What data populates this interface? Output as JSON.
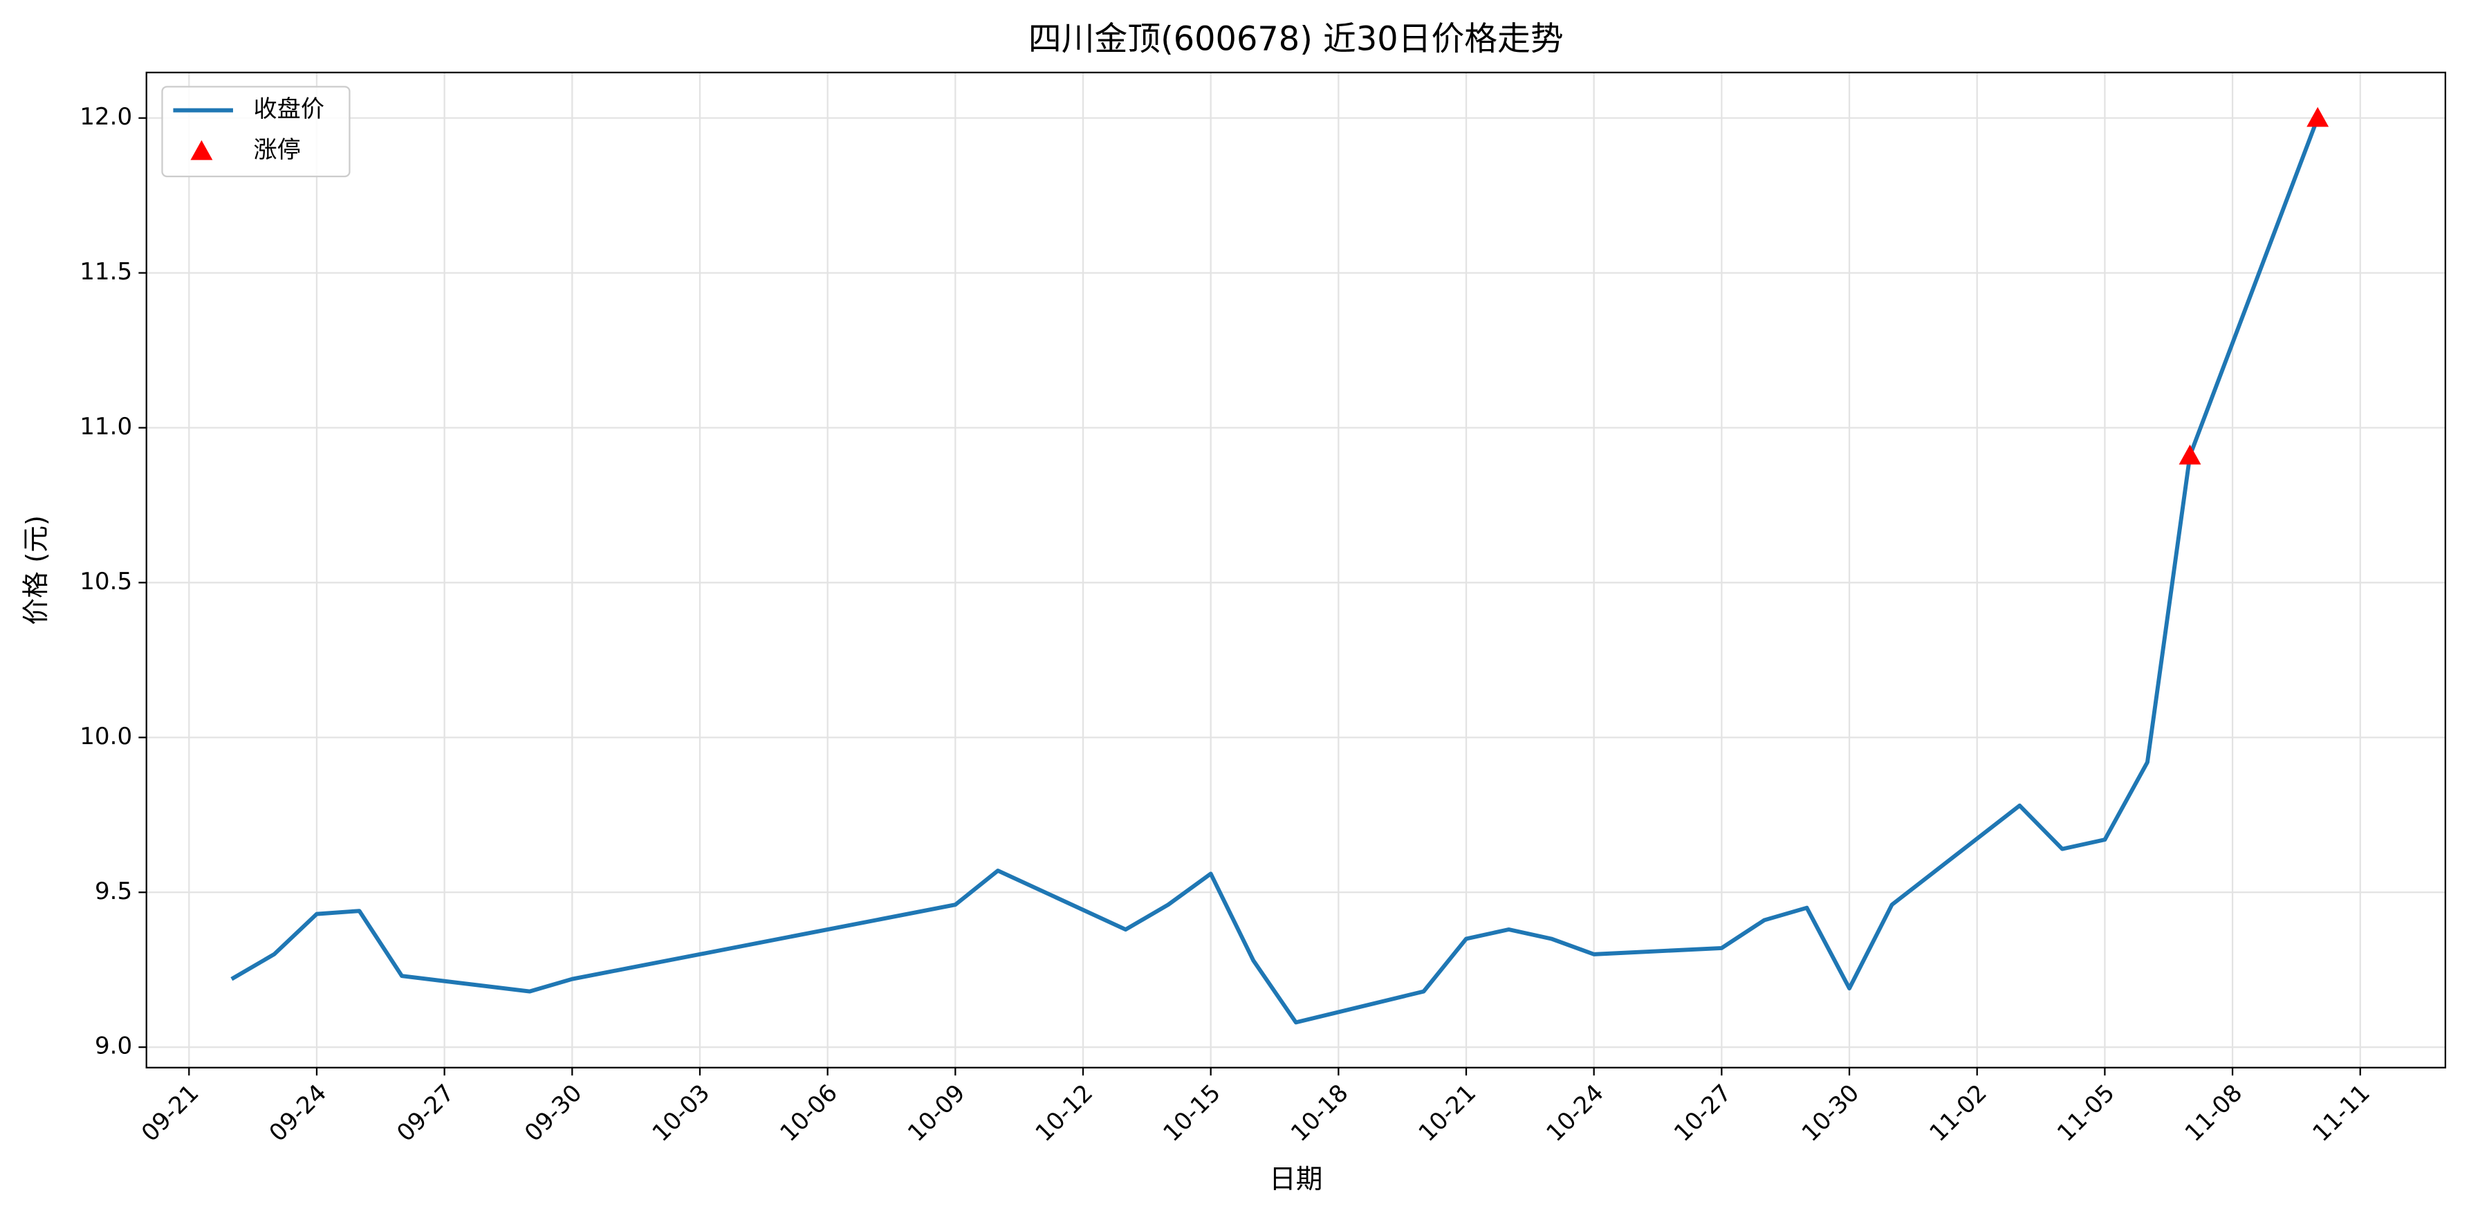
{
  "chart_data": {
    "type": "line",
    "title": "四川金顶(600678) 近30日价格走势",
    "x_label": "日期",
    "y_label": "价格 (元)",
    "x": [
      "09-22",
      "09-23",
      "09-24",
      "09-25",
      "09-26",
      "09-29",
      "09-30",
      "10-09",
      "10-10",
      "10-13",
      "10-14",
      "10-15",
      "10-16",
      "10-17",
      "10-20",
      "10-21",
      "10-22",
      "10-23",
      "10-24",
      "10-27",
      "10-28",
      "10-29",
      "10-30",
      "10-31",
      "11-03",
      "11-04",
      "11-05",
      "11-06",
      "11-07",
      "11-10"
    ],
    "series": [
      {
        "name": "收盘价",
        "type": "line",
        "color": "#1f77b4",
        "values": [
          9.22,
          9.3,
          9.43,
          9.44,
          9.23,
          9.18,
          9.22,
          9.46,
          9.57,
          9.38,
          9.46,
          9.56,
          9.28,
          9.08,
          9.18,
          9.35,
          9.38,
          9.35,
          9.3,
          9.32,
          9.41,
          9.45,
          9.19,
          9.46,
          9.78,
          9.64,
          9.67,
          9.92,
          10.91,
          12.0
        ]
      },
      {
        "name": "涨停",
        "type": "scatter",
        "color": "#ff0000",
        "marker": "triangle",
        "x": [
          "11-07",
          "11-10"
        ],
        "values": [
          10.91,
          12.0
        ]
      }
    ],
    "xlim": [
      "09-20",
      "11-13"
    ],
    "xticks": [
      "09-21",
      "09-24",
      "09-27",
      "09-30",
      "10-03",
      "10-06",
      "10-09",
      "10-12",
      "10-15",
      "10-18",
      "10-21",
      "10-24",
      "10-27",
      "10-30",
      "11-02",
      "11-05",
      "11-08",
      "11-11"
    ],
    "ylim": [
      8.934,
      12.147
    ],
    "yticks": [
      {
        "value": 9,
        "label": "9.0"
      },
      9.5,
      {
        "value": 10,
        "label": "10.0"
      },
      10.5,
      {
        "value": 11,
        "label": "11.0"
      },
      11.5,
      {
        "value": 12,
        "label": "12.0"
      }
    ],
    "grid": true,
    "legend": "upper-left"
  }
}
